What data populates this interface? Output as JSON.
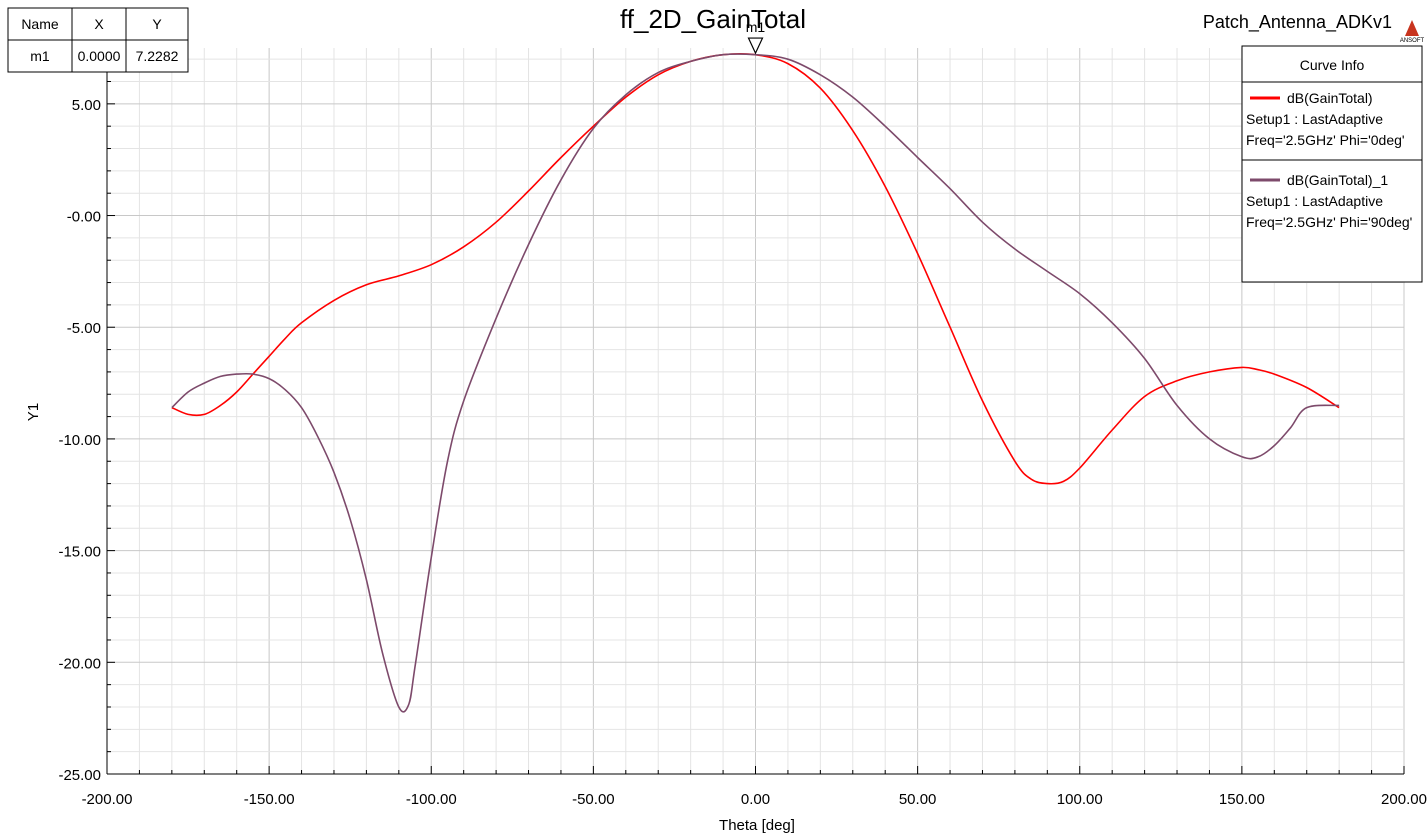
{
  "app": {
    "project_name": "Patch_Antenna_ADKv1",
    "logo_text": "ANSOFT"
  },
  "marker_table": {
    "headers": [
      "Name",
      "X",
      "Y"
    ],
    "rows": [
      [
        "m1",
        "0.0000",
        "7.2282"
      ]
    ]
  },
  "legend": {
    "header": "Curve Info",
    "entries": [
      {
        "name": "dB(GainTotal)",
        "line2": "Setup1 : LastAdaptive",
        "line3": "Freq='2.5GHz' Phi='0deg'",
        "color": "#ff0000"
      },
      {
        "name": "dB(GainTotal)_1",
        "line2": "Setup1 : LastAdaptive",
        "line3": "Freq='2.5GHz' Phi='90deg'",
        "color": "#7d4a6b"
      }
    ]
  },
  "chart_data": {
    "type": "line",
    "title": "ff_2D_GainTotal",
    "xlabel": "Theta [deg]",
    "ylabel": "Y1",
    "xlim": [
      -200,
      200
    ],
    "ylim": [
      -25,
      7.5
    ],
    "grid": true,
    "legend_position": "top-right",
    "x_ticks": [
      "-200.00",
      "-150.00",
      "-100.00",
      "-50.00",
      "0.00",
      "50.00",
      "100.00",
      "150.00",
      "200.00"
    ],
    "y_ticks": [
      "-25.00",
      "-20.00",
      "-15.00",
      "-10.00",
      "-5.00",
      "-0.00",
      "5.00"
    ],
    "y_tick_values": [
      -25,
      -20,
      -15,
      -10,
      -5,
      0,
      5
    ],
    "x_tick_values": [
      -200,
      -150,
      -100,
      -50,
      0,
      50,
      100,
      150,
      200
    ],
    "series": [
      {
        "name": "dB(GainTotal)",
        "color": "#ff0000",
        "x": [
          -180,
          -175,
          -170,
          -165,
          -160,
          -155,
          -150,
          -145,
          -140,
          -130,
          -120,
          -110,
          -100,
          -90,
          -80,
          -70,
          -60,
          -50,
          -40,
          -30,
          -20,
          -10,
          0,
          10,
          20,
          30,
          40,
          50,
          60,
          70,
          80,
          85,
          90,
          95,
          100,
          110,
          120,
          130,
          140,
          150,
          155,
          160,
          170,
          180
        ],
        "y": [
          -8.6,
          -8.9,
          -8.9,
          -8.5,
          -7.9,
          -7.1,
          -6.3,
          -5.5,
          -4.8,
          -3.8,
          -3.1,
          -2.7,
          -2.2,
          -1.4,
          -0.3,
          1.1,
          2.6,
          4.0,
          5.3,
          6.3,
          6.9,
          7.2,
          7.2,
          6.8,
          5.7,
          3.8,
          1.3,
          -1.7,
          -5.0,
          -8.3,
          -11.0,
          -11.8,
          -12.0,
          -11.9,
          -11.3,
          -9.6,
          -8.1,
          -7.4,
          -7.0,
          -6.8,
          -6.9,
          -7.1,
          -7.7,
          -8.6
        ]
      },
      {
        "name": "dB(GainTotal)_1",
        "color": "#7d4a6b",
        "x": [
          -180,
          -175,
          -170,
          -165,
          -160,
          -155,
          -150,
          -145,
          -140,
          -135,
          -130,
          -125,
          -120,
          -115,
          -110,
          -107,
          -105,
          -100,
          -95,
          -90,
          -80,
          -70,
          -60,
          -50,
          -40,
          -30,
          -20,
          -10,
          0,
          10,
          20,
          30,
          40,
          50,
          60,
          70,
          80,
          90,
          100,
          110,
          120,
          130,
          140,
          150,
          155,
          160,
          165,
          170,
          180
        ],
        "y": [
          -8.6,
          -7.9,
          -7.5,
          -7.2,
          -7.1,
          -7.1,
          -7.3,
          -7.8,
          -8.6,
          -9.9,
          -11.5,
          -13.6,
          -16.3,
          -19.6,
          -22.0,
          -21.9,
          -20.2,
          -15.3,
          -11.0,
          -8.3,
          -4.6,
          -1.3,
          1.6,
          3.9,
          5.4,
          6.4,
          6.9,
          7.2,
          7.2,
          7.0,
          6.3,
          5.3,
          4.0,
          2.6,
          1.2,
          -0.3,
          -1.5,
          -2.5,
          -3.5,
          -4.8,
          -6.4,
          -8.5,
          -10.0,
          -10.8,
          -10.8,
          -10.3,
          -9.5,
          -8.6,
          -8.5
        ]
      }
    ],
    "markers": [
      {
        "name": "m1",
        "x": 0,
        "y": 7.2282
      }
    ]
  }
}
